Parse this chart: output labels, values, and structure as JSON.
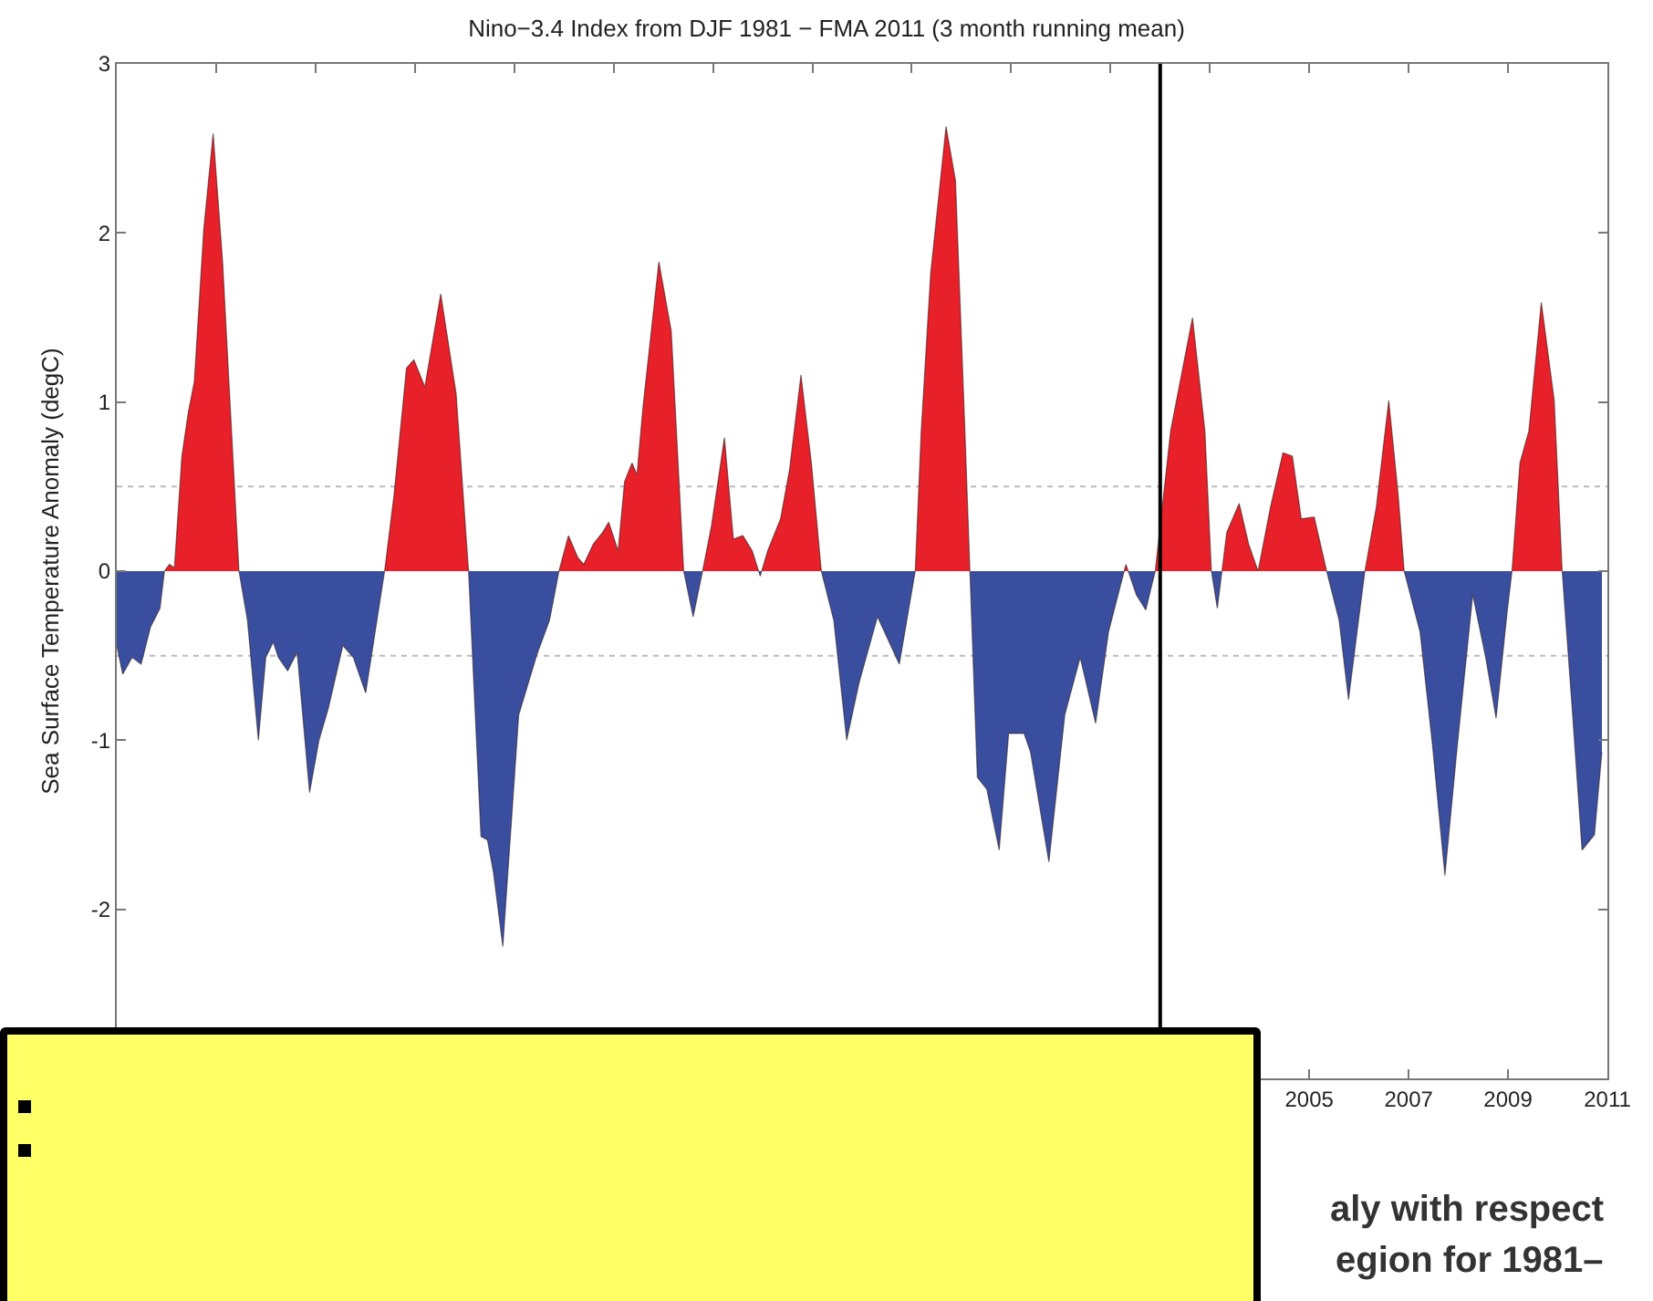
{
  "chart_data": {
    "type": "area",
    "title": "Nino−3.4 Index from DJF 1981 − FMA 2011 (3 month running mean)",
    "ylabel": "Sea Surface Temperature Anomaly (degC)",
    "xlim": [
      1981,
      2011
    ],
    "xticks": [
      {
        "value": 1981,
        "label": null
      },
      {
        "value": 1983,
        "label": null
      },
      {
        "value": 1985,
        "label": null
      },
      {
        "value": 1987,
        "label": null
      },
      {
        "value": 1989,
        "label": null
      },
      {
        "value": 1991,
        "label": null
      },
      {
        "value": 1993,
        "label": null
      },
      {
        "value": 1995,
        "label": null
      },
      {
        "value": 1997,
        "label": null
      },
      {
        "value": 1999,
        "label": null
      },
      {
        "value": 2001,
        "label": null
      },
      {
        "value": 2003,
        "label": null
      },
      2005,
      2007,
      2009,
      {
        "value": 2011,
        "label": "2011"
      }
    ],
    "ylim": [
      -3,
      3
    ],
    "yticks": [
      {
        "value": -3,
        "label": null
      },
      -2,
      -1,
      0,
      1,
      2,
      3
    ],
    "grid": false,
    "ref_lines": [
      {
        "axis": "y",
        "value": 0.5,
        "color": "#bbbbbb",
        "line_style": "dotted"
      },
      {
        "axis": "y",
        "value": -0.5,
        "color": "#bbbbbb",
        "line_style": "dotted"
      },
      {
        "axis": "x",
        "value": 2002,
        "color": "#000000",
        "line_style": "solid"
      }
    ],
    "annotations": [
      "aly with respect",
      "egion for 1981–"
    ],
    "series": [
      {
        "colors": [
          "#3a4ea0",
          "#3a4ea0",
          "#3a4ea0",
          "#3a4ea0",
          "#3a4ea0",
          "#3a4ea0",
          "#e8202a",
          "#e8202a",
          "#e8202a",
          "#e8202a",
          "#e8202a",
          "#e8202a",
          "#e8202a",
          "#e8202a",
          "#e8202a",
          "#e8202a",
          "#e8202a",
          "#3a4ea0",
          "#3a4ea0",
          "#3a4ea0",
          "#3a4ea0",
          "#3a4ea0",
          "#3a4ea0",
          "#3a4ea0",
          "#3a4ea0",
          "#3a4ea0",
          "#3a4ea0",
          "#3a4ea0",
          "#3a4ea0",
          "#3a4ea0",
          "#3a4ea0",
          "#e8202a",
          "#e8202a",
          "#e8202a",
          "#e8202a",
          "#e8202a",
          "#e8202a",
          "#e8202a",
          "#e8202a",
          "#3a4ea0",
          "#3a4ea0",
          "#3a4ea0",
          "#3a4ea0",
          "#3a4ea0",
          "#3a4ea0",
          "#3a4ea0",
          "#e8202a",
          "#e8202a",
          "#e8202a",
          "#e8202a",
          "#e8202a",
          "#e8202a",
          "#e8202a",
          "#e8202a",
          "#e8202a",
          "#e8202a",
          "#e8202a",
          "#e8202a",
          "#e8202a",
          "#e8202a",
          "#e8202a",
          "#3a4ea0",
          "#e8202a",
          "#e8202a",
          "#e8202a",
          "#e8202a",
          "#e8202a",
          "#e8202a",
          "#3a4ea0",
          "#e8202a",
          "#e8202a",
          "#e8202a",
          "#e8202a",
          "#e8202a",
          "#e8202a",
          "#3a4ea0",
          "#3a4ea0",
          "#3a4ea0",
          "#3a4ea0",
          "#3a4ea0",
          "#e8202a",
          "#e8202a",
          "#e8202a",
          "#e8202a",
          "#e8202a",
          "#e8202a",
          "#e8202a",
          "#3a4ea0",
          "#3a4ea0",
          "#3a4ea0",
          "#3a4ea0",
          "#3a4ea0",
          "#3a4ea0",
          "#3a4ea0",
          "#3a4ea0",
          "#3a4ea0",
          "#3a4ea0",
          "#3a4ea0",
          "#e8202a",
          "#3a4ea0",
          "#3a4ea0",
          "#3a4ea0",
          "#e8202a",
          "#e8202a",
          "#e8202a",
          "#e8202a",
          "#3a4ea0",
          "#e8202a",
          "#e8202a",
          "#e8202a",
          "#e8202a",
          "#e8202a",
          "#e8202a",
          "#e8202a",
          "#e8202a",
          "#e8202a",
          "#e8202a",
          "#3a4ea0",
          "#3a4ea0",
          "#3a4ea0",
          "#3a4ea0",
          "#e8202a",
          "#e8202a",
          "#e8202a",
          "#e8202a",
          "#3a4ea0",
          "#3a4ea0",
          "#3a4ea0",
          "#3a4ea0",
          "#3a4ea0",
          "#3a4ea0",
          "#3a4ea0",
          "#3a4ea0",
          "#e8202a",
          "#e8202a",
          "#e8202a",
          "#e8202a",
          "#e8202a",
          "#e8202a",
          "#3a4ea0",
          "#3a4ea0",
          "#3a4ea0",
          "#3a4ea0"
        ],
        "x": [
          1981.0,
          1981.12,
          1981.31,
          1981.49,
          1981.68,
          1981.87,
          1981.96,
          1982.06,
          1982.16,
          1982.31,
          1982.44,
          1982.56,
          1982.75,
          1982.94,
          1983.13,
          1983.31,
          1983.46,
          1983.63,
          1983.85,
          1984.0,
          1984.15,
          1984.25,
          1984.44,
          1984.63,
          1984.88,
          1985.07,
          1985.26,
          1985.55,
          1985.76,
          1986.01,
          1986.2,
          1986.39,
          1986.58,
          1986.83,
          1986.98,
          1987.2,
          1987.52,
          1987.83,
          1988.08,
          1988.33,
          1988.46,
          1988.58,
          1988.77,
          1989.09,
          1989.46,
          1989.71,
          1989.9,
          1990.09,
          1990.28,
          1990.4,
          1990.59,
          1990.78,
          1990.9,
          1991.09,
          1991.22,
          1991.37,
          1991.47,
          1991.59,
          1991.91,
          1992.16,
          1992.41,
          1992.6,
          1992.79,
          1992.97,
          1993.23,
          1993.41,
          1993.6,
          1993.79,
          1993.95,
          1994.1,
          1994.36,
          1994.54,
          1994.77,
          1994.98,
          1995.18,
          1995.43,
          1995.69,
          1995.94,
          1996.31,
          1996.75,
          1997.07,
          1997.19,
          1997.38,
          1997.69,
          1997.88,
          1998.07,
          1998.17,
          1998.32,
          1998.51,
          1998.76,
          1998.95,
          1999.26,
          1999.39,
          1999.76,
          2000.08,
          2000.39,
          2000.7,
          2000.96,
          2001.31,
          2001.52,
          2001.71,
          2001.9,
          2002.21,
          2002.65,
          2002.9,
          2003.03,
          2003.15,
          2003.34,
          2003.59,
          2003.78,
          2003.97,
          2004.22,
          2004.47,
          2004.66,
          2004.84,
          2005.1,
          2005.35,
          2005.6,
          2005.79,
          2006.04,
          2006.12,
          2006.35,
          2006.6,
          2006.79,
          2006.91,
          2007.23,
          2007.48,
          2007.73,
          2007.98,
          2008.29,
          2008.55,
          2008.76,
          2008.98,
          2009.08,
          2009.24,
          2009.42,
          2009.67,
          2009.93,
          2010.09,
          2010.3,
          2010.49,
          2010.74,
          2010.89
        ],
        "values": [
          -0.44,
          -0.61,
          -0.51,
          -0.55,
          -0.33,
          -0.22,
          0,
          0.04,
          0.02,
          0.68,
          0.94,
          1.12,
          2.02,
          2.59,
          1.83,
          0.83,
          0,
          -0.29,
          -1.0,
          -0.51,
          -0.42,
          -0.51,
          -0.59,
          -0.48,
          -1.31,
          -1.0,
          -0.81,
          -0.44,
          -0.51,
          -0.72,
          -0.36,
          0,
          0.45,
          1.2,
          1.25,
          1.09,
          1.64,
          1.05,
          0,
          -1.57,
          -1.59,
          -1.78,
          -2.22,
          -0.85,
          -0.49,
          -0.29,
          0,
          0.21,
          0.08,
          0.04,
          0.16,
          0.23,
          0.29,
          0.12,
          0.53,
          0.64,
          0.57,
          0.97,
          1.83,
          1.42,
          0,
          -0.27,
          0,
          0.27,
          0.79,
          0.19,
          0.21,
          0.12,
          -0.03,
          0.12,
          0.31,
          0.6,
          1.16,
          0.64,
          0,
          -0.29,
          -1.0,
          -0.66,
          -0.27,
          -0.55,
          0,
          0.83,
          1.76,
          2.63,
          2.31,
          0.83,
          0,
          -1.22,
          -1.29,
          -1.65,
          -0.96,
          -0.96,
          -1.07,
          -1.72,
          -0.85,
          -0.51,
          -0.9,
          -0.36,
          0.04,
          -0.14,
          -0.23,
          0,
          0.83,
          1.5,
          0.83,
          0,
          -0.22,
          0.23,
          0.4,
          0.16,
          0,
          0.38,
          0.7,
          0.68,
          0.31,
          0.32,
          0,
          -0.29,
          -0.76,
          -0.18,
          0,
          0.38,
          1.01,
          0.45,
          0,
          -0.36,
          -1.03,
          -1.8,
          -1.03,
          -0.14,
          -0.51,
          -0.87,
          -0.25,
          0,
          0.64,
          0.83,
          1.59,
          1.01,
          0,
          -0.85,
          -1.65,
          -1.56,
          -1.07
        ]
      }
    ]
  }
}
